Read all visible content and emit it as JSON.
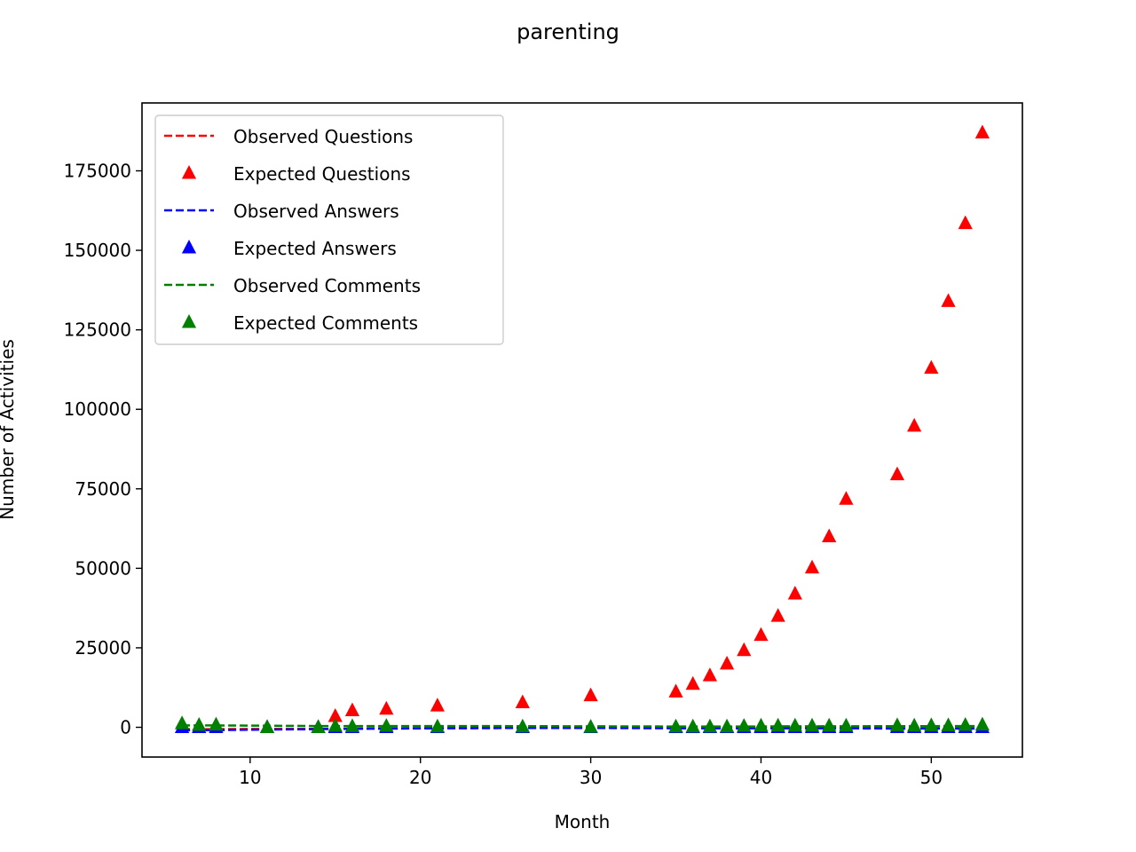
{
  "chart_data": {
    "type": "scatter",
    "title": "parenting",
    "xlabel": "Month",
    "ylabel": "Number of Activities",
    "xlim": [
      3.65,
      55.35
    ],
    "ylim": [
      -9350,
      196350
    ],
    "xticks": [
      10,
      20,
      30,
      40,
      50
    ],
    "yticks": [
      0,
      25000,
      50000,
      75000,
      100000,
      125000,
      150000,
      175000
    ],
    "grid": false,
    "legend_position": "top-left",
    "x": [
      6,
      7,
      8,
      11,
      14,
      15,
      16,
      18,
      21,
      26,
      30,
      35,
      36,
      37,
      38,
      39,
      40,
      41,
      42,
      43,
      44,
      45,
      48,
      49,
      50,
      51,
      52,
      53
    ],
    "series": [
      {
        "name": "Observed Questions",
        "style": "dashed-line",
        "color": "#ff0000",
        "values": [
          -600,
          -600,
          -600,
          -500,
          -500,
          -500,
          -400,
          -400,
          -300,
          -200,
          -100,
          100,
          100,
          100,
          150,
          150,
          200,
          200,
          200,
          200,
          250,
          250,
          300,
          300,
          300,
          300,
          300,
          300
        ]
      },
      {
        "name": "Expected Questions",
        "style": "triangle-marker",
        "color": "#ff0000",
        "values": [
          0,
          0,
          0,
          0,
          0,
          3500,
          5300,
          5800,
          6800,
          7800,
          10000,
          11200,
          13600,
          16300,
          20000,
          24200,
          29000,
          35000,
          42000,
          50200,
          60000,
          71800,
          79500,
          94800,
          113000,
          134000,
          158500,
          187000
        ]
      },
      {
        "name": "Observed Answers",
        "style": "dashed-line",
        "color": "#0000ff",
        "values": [
          -900,
          -900,
          -900,
          -700,
          -600,
          -500,
          -500,
          -400,
          -300,
          -200,
          -200,
          -300,
          -300,
          -300,
          -300,
          -300,
          -300,
          -300,
          -300,
          -300,
          -300,
          -300,
          -400,
          -400,
          -400,
          -400,
          -400,
          -400
        ]
      },
      {
        "name": "Expected Answers",
        "style": "triangle-marker",
        "color": "#0000ff",
        "values": [
          0,
          0,
          0,
          0,
          0,
          0,
          0,
          0,
          0,
          0,
          0,
          0,
          0,
          0,
          0,
          0,
          0,
          0,
          0,
          0,
          0,
          0,
          0,
          0,
          0,
          0,
          0,
          0
        ]
      },
      {
        "name": "Observed Comments",
        "style": "dashed-line",
        "color": "#008000",
        "values": [
          600,
          600,
          600,
          500,
          400,
          400,
          400,
          400,
          400,
          350,
          300,
          250,
          250,
          250,
          250,
          250,
          250,
          300,
          300,
          300,
          300,
          300,
          350,
          350,
          350,
          400,
          400,
          400
        ]
      },
      {
        "name": "Expected Comments",
        "style": "triangle-marker",
        "color": "#008000",
        "values": [
          1200,
          700,
          800,
          0,
          0,
          400,
          300,
          400,
          200,
          200,
          100,
          200,
          200,
          200,
          200,
          400,
          500,
          500,
          500,
          500,
          500,
          500,
          600,
          500,
          600,
          600,
          700,
          800
        ]
      }
    ]
  }
}
